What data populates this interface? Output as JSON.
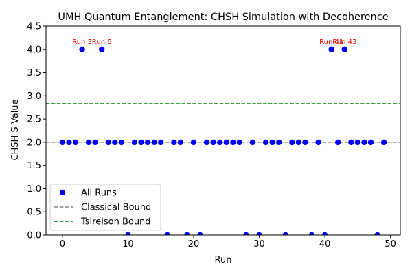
{
  "chart_data": {
    "type": "scatter",
    "title": "UMH Quantum Entanglement: CHSH Simulation with Decoherence",
    "xlabel": "Run",
    "ylabel": "CHSH S Value",
    "xlim": [
      -2.5,
      51.5
    ],
    "ylim": [
      0,
      4.5
    ],
    "x_ticks": [
      "0",
      "10",
      "20",
      "30",
      "40",
      "50"
    ],
    "x_tick_values": [
      0,
      10,
      20,
      30,
      40,
      50
    ],
    "y_ticks": [
      "0.0",
      "0.5",
      "1.0",
      "1.5",
      "2.0",
      "2.5",
      "3.0",
      "3.5",
      "4.0",
      "4.5"
    ],
    "y_tick_values": [
      0,
      0.5,
      1.0,
      1.5,
      2.0,
      2.5,
      3.0,
      3.5,
      4.0,
      4.5
    ],
    "grid": false,
    "legend_position": "lower-left",
    "series": [
      {
        "name": "All Runs",
        "color": "#0000ff",
        "x": [
          0,
          1,
          2,
          3,
          4,
          5,
          6,
          7,
          8,
          9,
          10,
          11,
          12,
          13,
          14,
          15,
          16,
          17,
          18,
          19,
          20,
          21,
          22,
          23,
          24,
          25,
          26,
          27,
          28,
          29,
          30,
          31,
          32,
          33,
          34,
          35,
          36,
          37,
          38,
          39,
          40,
          41,
          42,
          43,
          44,
          45,
          46,
          47,
          48,
          49
        ],
        "y": [
          2,
          2,
          2,
          4,
          2,
          2,
          4,
          2,
          2,
          2,
          0,
          2,
          2,
          2,
          2,
          2,
          0,
          2,
          2,
          0,
          2,
          0,
          2,
          2,
          2,
          2,
          2,
          2,
          0,
          2,
          0,
          2,
          2,
          2,
          0,
          2,
          2,
          2,
          0,
          2,
          0,
          4,
          2,
          4,
          2,
          2,
          2,
          2,
          0,
          2
        ]
      }
    ],
    "reference_lines": [
      {
        "name": "Classical Bound",
        "y": 2.0,
        "color": "#808080",
        "style": "dashed"
      },
      {
        "name": "Tsirelson Bound",
        "y": 2.828,
        "color": "#008000",
        "style": "dashed"
      }
    ],
    "annotations": [
      {
        "text": "Run 3",
        "x": 3,
        "y": 4,
        "color": "#ff0000"
      },
      {
        "text": "Run 6",
        "x": 6,
        "y": 4,
        "color": "#ff0000"
      },
      {
        "text": "Run 41",
        "x": 41,
        "y": 4,
        "color": "#ff0000"
      },
      {
        "text": "Run 43",
        "x": 43,
        "y": 4,
        "color": "#ff0000"
      }
    ]
  }
}
